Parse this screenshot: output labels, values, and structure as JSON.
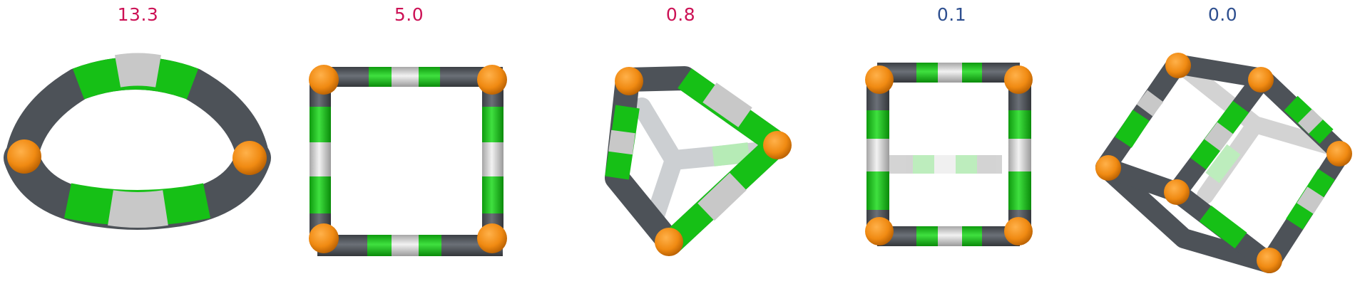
{
  "colors": {
    "high": "#cc1155",
    "low": "#2e4f8f",
    "segment_dark": "#4d5258",
    "segment_green": "#16c016",
    "segment_light": "#c4c4c4",
    "joint": "#f08a12"
  },
  "panels": [
    {
      "value": "13.3",
      "tone": "high",
      "shape": "ring-tilted"
    },
    {
      "value": "5.0",
      "tone": "high",
      "shape": "square-frame"
    },
    {
      "value": "0.8",
      "tone": "high",
      "shape": "triangular-prism"
    },
    {
      "value": "0.1",
      "tone": "low",
      "shape": "prism-front"
    },
    {
      "value": "0.0",
      "tone": "low",
      "shape": "cube-frame"
    }
  ]
}
